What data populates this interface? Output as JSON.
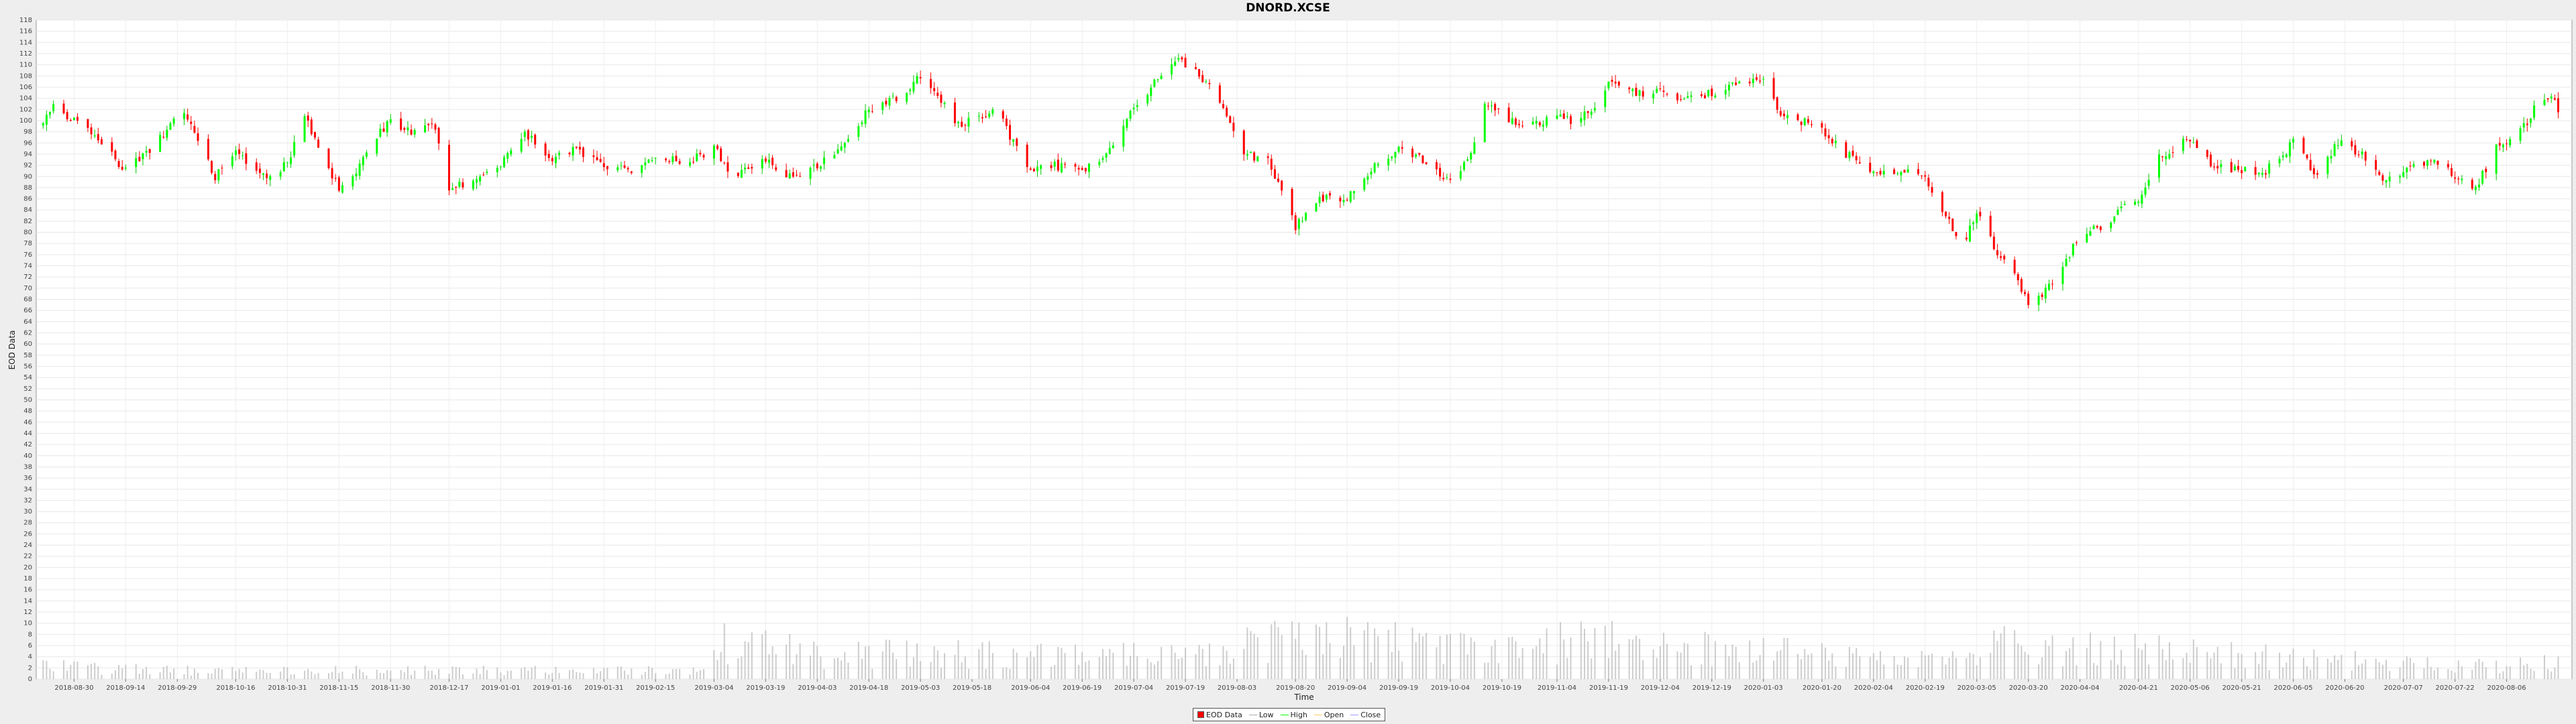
{
  "chart_data": {
    "type": "candlestick",
    "title": "DNORD.XCSE",
    "xlabel": "Time",
    "ylabel": "EOD Data",
    "ylim": [
      0,
      118
    ],
    "ytick_step": 2,
    "grid": true,
    "legend_position": "bottom-center",
    "x_tick_labels": [
      "2018-08-30",
      "2018-09-14",
      "2018-09-29",
      "2018-10-16",
      "2018-10-31",
      "2018-11-15",
      "2018-11-30",
      "2018-12-17",
      "2019-01-01",
      "2019-01-16",
      "2019-01-31",
      "2019-02-15",
      "2019-03-04",
      "2019-03-19",
      "2019-04-03",
      "2019-04-18",
      "2019-05-03",
      "2019-05-18",
      "2019-06-04",
      "2019-06-19",
      "2019-07-04",
      "2019-07-19",
      "2019-08-03",
      "2019-08-20",
      "2019-09-04",
      "2019-09-19",
      "2019-10-04",
      "2019-10-19",
      "2019-11-04",
      "2019-11-19",
      "2019-12-04",
      "2019-12-19",
      "2020-01-03",
      "2020-01-20",
      "2020-02-04",
      "2020-02-19",
      "2020-03-05",
      "2020-03-20",
      "2020-04-04",
      "2020-04-21",
      "2020-05-06",
      "2020-05-21",
      "2020-06-05",
      "2020-06-20",
      "2020-07-07",
      "2020-07-22",
      "2020-08-06"
    ],
    "series": [
      {
        "name": "EOD Data",
        "color": "#ff0000"
      },
      {
        "name": "Low",
        "color": "#aaaaaa"
      },
      {
        "name": "High",
        "color": "#00ff00"
      },
      {
        "name": "Open",
        "color": "#ffcc66"
      },
      {
        "name": "Close",
        "color": "#9999ff"
      }
    ],
    "colors": {
      "up": "#00ff00",
      "down": "#ff0000",
      "wick_up": "#00cc00",
      "wick_down": "#ff0000",
      "volume": "#b8b8b8"
    },
    "close_anchors": [
      [
        "2018-08-21",
        99
      ],
      [
        "2018-08-24",
        103
      ],
      [
        "2018-08-30",
        100
      ],
      [
        "2018-09-05",
        97
      ],
      [
        "2018-09-10",
        94
      ],
      [
        "2018-09-14",
        91
      ],
      [
        "2018-09-21",
        95
      ],
      [
        "2018-09-26",
        98
      ],
      [
        "2018-09-30",
        102
      ],
      [
        "2018-10-05",
        97
      ],
      [
        "2018-10-10",
        90
      ],
      [
        "2018-10-16",
        95
      ],
      [
        "2018-10-21",
        91
      ],
      [
        "2018-10-27",
        89
      ],
      [
        "2018-11-01",
        94
      ],
      [
        "2018-11-05",
        101
      ],
      [
        "2018-11-09",
        95
      ],
      [
        "2018-11-15",
        88
      ],
      [
        "2018-11-20",
        91
      ],
      [
        "2018-11-26",
        97
      ],
      [
        "2018-11-30",
        100
      ],
      [
        "2018-12-06",
        98
      ],
      [
        "2018-12-12",
        100
      ],
      [
        "2018-12-17",
        88
      ],
      [
        "2018-12-22",
        89
      ],
      [
        "2019-01-01",
        92
      ],
      [
        "2019-01-08",
        98
      ],
      [
        "2019-01-16",
        93
      ],
      [
        "2019-01-23",
        95
      ],
      [
        "2019-01-31",
        92
      ],
      [
        "2019-02-08",
        91
      ],
      [
        "2019-02-15",
        93
      ],
      [
        "2019-02-25",
        93
      ],
      [
        "2019-03-04",
        95
      ],
      [
        "2019-03-10",
        90
      ],
      [
        "2019-03-19",
        93
      ],
      [
        "2019-03-26",
        90
      ],
      [
        "2019-04-03",
        92
      ],
      [
        "2019-04-10",
        95
      ],
      [
        "2019-04-18",
        102
      ],
      [
        "2019-04-26",
        104
      ],
      [
        "2019-05-03",
        108
      ],
      [
        "2019-05-10",
        103
      ],
      [
        "2019-05-14",
        99
      ],
      [
        "2019-05-18",
        100
      ],
      [
        "2019-05-25",
        102
      ],
      [
        "2019-05-31",
        95
      ],
      [
        "2019-06-04",
        91
      ],
      [
        "2019-06-10",
        92
      ],
      [
        "2019-06-19",
        91
      ],
      [
        "2019-06-26",
        94
      ],
      [
        "2019-07-04",
        102
      ],
      [
        "2019-07-10",
        107
      ],
      [
        "2019-07-16",
        111
      ],
      [
        "2019-07-19",
        110
      ],
      [
        "2019-07-25",
        107
      ],
      [
        "2019-07-31",
        101
      ],
      [
        "2019-08-05",
        94
      ],
      [
        "2019-08-12",
        93
      ],
      [
        "2019-08-20",
        81
      ],
      [
        "2019-08-26",
        86
      ],
      [
        "2019-09-04",
        86
      ],
      [
        "2019-09-12",
        92
      ],
      [
        "2019-09-19",
        95
      ],
      [
        "2019-09-26",
        93
      ],
      [
        "2019-10-04",
        89
      ],
      [
        "2019-10-10",
        94
      ],
      [
        "2019-10-14",
        103
      ],
      [
        "2019-10-19",
        101
      ],
      [
        "2019-10-26",
        99
      ],
      [
        "2019-11-04",
        101
      ],
      [
        "2019-11-08",
        100
      ],
      [
        "2019-11-14",
        102
      ],
      [
        "2019-11-19",
        107
      ],
      [
        "2019-11-25",
        105
      ],
      [
        "2019-12-04",
        105
      ],
      [
        "2019-12-12",
        104
      ],
      [
        "2019-12-19",
        105
      ],
      [
        "2019-12-27",
        107
      ],
      [
        "2020-01-03",
        107
      ],
      [
        "2020-01-08",
        101
      ],
      [
        "2020-01-14",
        100
      ],
      [
        "2020-01-20",
        98
      ],
      [
        "2020-01-27",
        94
      ],
      [
        "2020-02-04",
        91
      ],
      [
        "2020-02-12",
        91
      ],
      [
        "2020-02-19",
        90
      ],
      [
        "2020-02-25",
        83
      ],
      [
        "2020-03-01",
        77
      ],
      [
        "2020-03-05",
        84
      ],
      [
        "2020-03-11",
        76
      ],
      [
        "2020-03-16",
        72
      ],
      [
        "2020-03-20",
        67
      ],
      [
        "2020-03-26",
        70
      ],
      [
        "2020-04-01",
        76
      ],
      [
        "2020-04-04",
        80
      ],
      [
        "2020-04-10",
        81
      ],
      [
        "2020-04-16",
        84
      ],
      [
        "2020-04-21",
        86
      ],
      [
        "2020-04-27",
        94
      ],
      [
        "2020-05-02",
        95
      ],
      [
        "2020-05-06",
        97
      ],
      [
        "2020-05-12",
        92
      ],
      [
        "2020-05-21",
        91
      ],
      [
        "2020-05-28",
        91
      ],
      [
        "2020-06-05",
        96
      ],
      [
        "2020-06-12",
        90
      ],
      [
        "2020-06-18",
        96
      ],
      [
        "2020-06-25",
        94
      ],
      [
        "2020-07-02",
        89
      ],
      [
        "2020-07-07",
        91
      ],
      [
        "2020-07-15",
        93
      ],
      [
        "2020-07-22",
        90
      ],
      [
        "2020-07-28",
        88
      ],
      [
        "2020-08-03",
        95
      ],
      [
        "2020-08-10",
        98
      ],
      [
        "2020-08-14",
        102
      ],
      [
        "2020-08-19",
        104
      ],
      [
        "2020-08-22",
        101
      ]
    ],
    "volume_anchors": [
      [
        "2018-08-21",
        3
      ],
      [
        "2018-10-01",
        2
      ],
      [
        "2019-03-01",
        2
      ],
      [
        "2019-03-04",
        9
      ],
      [
        "2019-04-05",
        6
      ],
      [
        "2019-07-19",
        6
      ],
      [
        "2019-08-20",
        10
      ],
      [
        "2019-10-14",
        8
      ],
      [
        "2019-11-14",
        9
      ],
      [
        "2020-02-25",
        4
      ],
      [
        "2020-03-12",
        9
      ],
      [
        "2020-03-20",
        7
      ],
      [
        "2020-04-21",
        7
      ],
      [
        "2020-05-06",
        6
      ],
      [
        "2020-07-28",
        3
      ],
      [
        "2020-08-22",
        4
      ]
    ]
  }
}
